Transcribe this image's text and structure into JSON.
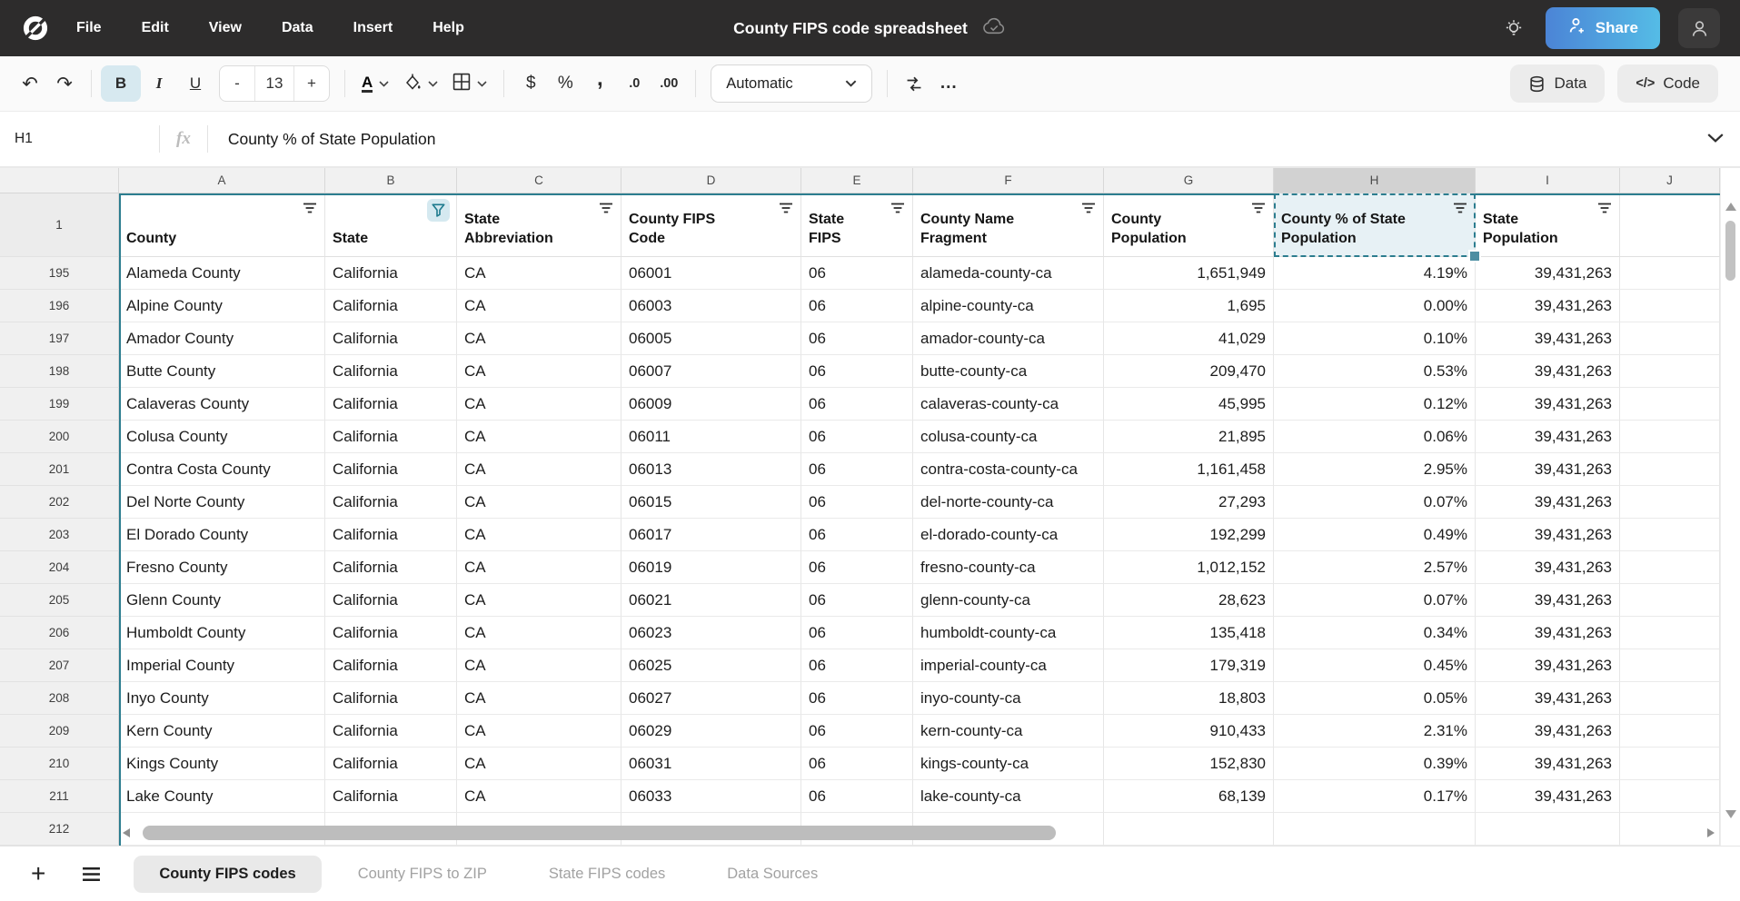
{
  "topbar": {
    "menus": [
      "File",
      "Edit",
      "View",
      "Data",
      "Insert",
      "Help"
    ],
    "title": "County FIPS code spreadsheet",
    "share_label": "Share"
  },
  "toolbar": {
    "bold": "B",
    "italic": "I",
    "underline": "U",
    "decrease_size": "-",
    "font_size": "13",
    "increase_size": "+",
    "text_color": "A",
    "currency": "$",
    "percent": "%",
    "comma": ",",
    "decrease_decimal": ".0",
    "increase_decimal": ".00",
    "format_mode": "Automatic",
    "more": "...",
    "data_label": "Data",
    "code_label": "Code"
  },
  "formula_bar": {
    "cell_ref": "H1",
    "fx": "fx",
    "value": "County % of State Population"
  },
  "grid": {
    "column_letters": [
      "A",
      "B",
      "C",
      "D",
      "E",
      "F",
      "G",
      "H",
      "I",
      "J"
    ],
    "selected_letter": "H",
    "header_row_num": "1",
    "partial_row_num": "212",
    "headers": [
      {
        "label": "County",
        "filter": "lines"
      },
      {
        "label": "State",
        "filter": "funnel"
      },
      {
        "label": "State Abbreviation",
        "filter": "lines"
      },
      {
        "label": "County FIPS Code",
        "filter": "lines"
      },
      {
        "label": "State FIPS",
        "filter": "lines"
      },
      {
        "label": "County Name Fragment",
        "filter": "lines"
      },
      {
        "label": "County Population",
        "filter": "lines"
      },
      {
        "label": "County % of State Population",
        "filter": "lines",
        "selected": true
      },
      {
        "label": "State Population",
        "filter": "lines"
      },
      {
        "label": "",
        "filter": ""
      }
    ],
    "rows": [
      {
        "num": "195",
        "cells": [
          "Alameda County",
          "California",
          "CA",
          "06001",
          "06",
          "alameda-county-ca",
          "1,651,949",
          "4.19%",
          "39,431,263",
          ""
        ]
      },
      {
        "num": "196",
        "cells": [
          "Alpine County",
          "California",
          "CA",
          "06003",
          "06",
          "alpine-county-ca",
          "1,695",
          "0.00%",
          "39,431,263",
          ""
        ]
      },
      {
        "num": "197",
        "cells": [
          "Amador County",
          "California",
          "CA",
          "06005",
          "06",
          "amador-county-ca",
          "41,029",
          "0.10%",
          "39,431,263",
          ""
        ]
      },
      {
        "num": "198",
        "cells": [
          "Butte County",
          "California",
          "CA",
          "06007",
          "06",
          "butte-county-ca",
          "209,470",
          "0.53%",
          "39,431,263",
          ""
        ]
      },
      {
        "num": "199",
        "cells": [
          "Calaveras County",
          "California",
          "CA",
          "06009",
          "06",
          "calaveras-county-ca",
          "45,995",
          "0.12%",
          "39,431,263",
          ""
        ]
      },
      {
        "num": "200",
        "cells": [
          "Colusa County",
          "California",
          "CA",
          "06011",
          "06",
          "colusa-county-ca",
          "21,895",
          "0.06%",
          "39,431,263",
          ""
        ]
      },
      {
        "num": "201",
        "cells": [
          "Contra Costa County",
          "California",
          "CA",
          "06013",
          "06",
          "contra-costa-county-ca",
          "1,161,458",
          "2.95%",
          "39,431,263",
          ""
        ]
      },
      {
        "num": "202",
        "cells": [
          "Del Norte County",
          "California",
          "CA",
          "06015",
          "06",
          "del-norte-county-ca",
          "27,293",
          "0.07%",
          "39,431,263",
          ""
        ]
      },
      {
        "num": "203",
        "cells": [
          "El Dorado County",
          "California",
          "CA",
          "06017",
          "06",
          "el-dorado-county-ca",
          "192,299",
          "0.49%",
          "39,431,263",
          ""
        ]
      },
      {
        "num": "204",
        "cells": [
          "Fresno County",
          "California",
          "CA",
          "06019",
          "06",
          "fresno-county-ca",
          "1,012,152",
          "2.57%",
          "39,431,263",
          ""
        ]
      },
      {
        "num": "205",
        "cells": [
          "Glenn County",
          "California",
          "CA",
          "06021",
          "06",
          "glenn-county-ca",
          "28,623",
          "0.07%",
          "39,431,263",
          ""
        ]
      },
      {
        "num": "206",
        "cells": [
          "Humboldt County",
          "California",
          "CA",
          "06023",
          "06",
          "humboldt-county-ca",
          "135,418",
          "0.34%",
          "39,431,263",
          ""
        ]
      },
      {
        "num": "207",
        "cells": [
          "Imperial County",
          "California",
          "CA",
          "06025",
          "06",
          "imperial-county-ca",
          "179,319",
          "0.45%",
          "39,431,263",
          ""
        ]
      },
      {
        "num": "208",
        "cells": [
          "Inyo County",
          "California",
          "CA",
          "06027",
          "06",
          "inyo-county-ca",
          "18,803",
          "0.05%",
          "39,431,263",
          ""
        ]
      },
      {
        "num": "209",
        "cells": [
          "Kern County",
          "California",
          "CA",
          "06029",
          "06",
          "kern-county-ca",
          "910,433",
          "2.31%",
          "39,431,263",
          ""
        ]
      },
      {
        "num": "210",
        "cells": [
          "Kings County",
          "California",
          "CA",
          "06031",
          "06",
          "kings-county-ca",
          "152,830",
          "0.39%",
          "39,431,263",
          ""
        ]
      },
      {
        "num": "211",
        "cells": [
          "Lake County",
          "California",
          "CA",
          "06033",
          "06",
          "lake-county-ca",
          "68,139",
          "0.17%",
          "39,431,263",
          ""
        ]
      }
    ]
  },
  "sheetbar": {
    "tabs": [
      "County FIPS codes",
      "County FIPS to ZIP",
      "State FIPS codes",
      "Data Sources"
    ],
    "active_tab": "County FIPS codes"
  },
  "colors": {
    "accent_teal": "#2c7d8f",
    "selection_fill": "#e7f1f5",
    "topbar_bg": "#2d2c2c",
    "share_gradient_start": "#4b84d6",
    "share_gradient_end": "#55bce6"
  }
}
